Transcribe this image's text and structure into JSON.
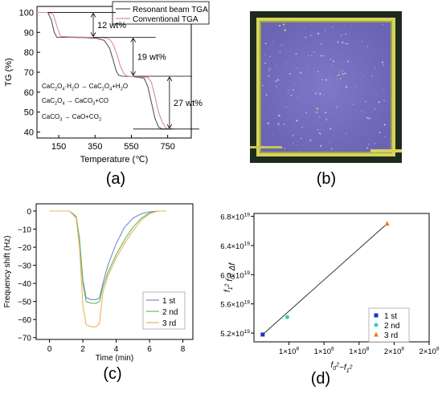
{
  "panel_labels": {
    "a": "(a)",
    "b": "(b)",
    "c": "(c)",
    "d": "(d)"
  },
  "chart_data": [
    {
      "id": "a",
      "type": "line",
      "xlabel": "Temperature (℃)",
      "ylabel": "TG (%)",
      "xticks": [
        150,
        350,
        550,
        750
      ],
      "yticks": [
        40,
        50,
        60,
        70,
        80,
        90,
        100
      ],
      "xlim": [
        30,
        880
      ],
      "ylim": [
        37,
        103
      ],
      "legend": "top-right",
      "series": [
        {
          "name": "Resonant beam TGA",
          "color": "#555555",
          "x": [
            30,
            90,
            110,
            125,
            140,
            200,
            300,
            360,
            400,
            430,
            450,
            465,
            480,
            500,
            560,
            620,
            640,
            660,
            680,
            700,
            720,
            740,
            780
          ],
          "y": [
            100,
            100,
            96,
            90,
            87.5,
            87.5,
            87.3,
            87,
            86,
            82,
            76,
            71,
            68.5,
            68,
            67.8,
            67,
            63,
            55,
            47,
            42.5,
            41.5,
            41.5,
            41.5
          ]
        },
        {
          "name": "Conventional TGA",
          "color": "#e08a96",
          "x": [
            30,
            90,
            120,
            140,
            160,
            200,
            300,
            400,
            430,
            450,
            470,
            490,
            510,
            530,
            560,
            640,
            660,
            680,
            700,
            720,
            740,
            760,
            780
          ],
          "y": [
            100,
            100,
            99,
            93,
            88,
            87.8,
            87.6,
            87.3,
            86.5,
            84,
            79,
            73,
            69,
            68,
            67.8,
            67.5,
            65,
            58,
            50,
            45,
            42,
            41.5,
            41.5
          ]
        }
      ],
      "step_annotations": [
        "12 wt%",
        "19 wt%",
        "27 wt%"
      ],
      "step_levels": [
        [
          100,
          87.5
        ],
        [
          87.5,
          68
        ],
        [
          68,
          41.5
        ]
      ],
      "equations": [
        [
          "CaC",
          "2",
          "O",
          "4",
          "·H",
          "2",
          "O → CaC",
          "2",
          "O",
          "4",
          "+H",
          "2",
          "O"
        ],
        [
          "CaC",
          "2",
          "O",
          "4",
          " → CaCO",
          "3",
          "+CO"
        ],
        [
          "CaCO",
          "3",
          " → CaO+CO",
          "2",
          ""
        ]
      ]
    },
    {
      "id": "c",
      "type": "line",
      "xlabel": "Time (min)",
      "ylabel": "Frequency shift (Hz)",
      "xticks": [
        0,
        2,
        4,
        6,
        8
      ],
      "yticks": [
        0,
        -10,
        -20,
        -30,
        -40,
        -50,
        -60,
        -70
      ],
      "xlim": [
        -0.8,
        8.6
      ],
      "ylim": [
        -71,
        4
      ],
      "legend": "bottom-right",
      "series": [
        {
          "name": "1 st",
          "color": "#7b86d6",
          "x": [
            0,
            1.2,
            1.6,
            1.8,
            2.0,
            2.2,
            2.5,
            2.8,
            3.0,
            3.2,
            3.5,
            4.0,
            4.5,
            5.0,
            5.5,
            6.0,
            6.5,
            7.0
          ],
          "y": [
            0,
            0,
            -3,
            -15,
            -38,
            -48,
            -49,
            -49,
            -48,
            -40,
            -30,
            -18,
            -9,
            -4,
            -1.5,
            -0.5,
            0,
            0
          ]
        },
        {
          "name": "2 nd",
          "color": "#5cbf5c",
          "x": [
            0,
            1.2,
            1.6,
            1.8,
            2.0,
            2.2,
            2.5,
            2.8,
            3.0,
            3.2,
            3.5,
            4.0,
            4.5,
            5.0,
            5.5,
            6.0,
            6.5,
            7.0
          ],
          "y": [
            0,
            0,
            -3,
            -16,
            -40,
            -50,
            -51,
            -51,
            -50,
            -42,
            -34,
            -24,
            -16,
            -9,
            -4,
            -1,
            0,
            0
          ]
        },
        {
          "name": "3 rd",
          "color": "#f0b060",
          "x": [
            0,
            1.2,
            1.6,
            1.8,
            2.0,
            2.2,
            2.5,
            2.8,
            3.0,
            3.2,
            3.5,
            4.0,
            4.5,
            5.0,
            5.5,
            6.0,
            6.5,
            7.0
          ],
          "y": [
            0,
            0,
            -4,
            -20,
            -52,
            -63,
            -64,
            -64,
            -62,
            -45,
            -36,
            -26,
            -18,
            -11,
            -5,
            -1.5,
            0,
            0
          ]
        }
      ]
    },
    {
      "id": "d",
      "type": "scatter",
      "xlabel_parts": [
        "f",
        "0",
        "2",
        "−f",
        "1",
        "2"
      ],
      "ylabel_parts": [
        "f",
        "1",
        "2",
        " f",
        "0",
        "2",
        " Δf"
      ],
      "yticks": [
        "5.2×10",
        "5.6×10",
        "6.0×10",
        "6.4×10",
        "6.8×10"
      ],
      "ytick_exponent": "19",
      "ytick_values": [
        5.2,
        5.6,
        6.0,
        6.4,
        6.8
      ],
      "xticks": [
        "1×10",
        "1×10",
        "1×10",
        "2×10",
        "2×10"
      ],
      "xtick_exponent": "8",
      "xlim": [
        0,
        5
      ],
      "ylim": [
        5.08,
        6.84
      ],
      "legend": "bottom-right",
      "fit_line": {
        "x": [
          0.25,
          3.8
        ],
        "y": [
          5.18,
          6.7
        ]
      },
      "series": [
        {
          "name": "1 st",
          "color": "#1f2fc4",
          "marker": "square",
          "x": [
            0.25
          ],
          "y": [
            5.18
          ]
        },
        {
          "name": "2 nd",
          "color": "#39d39a",
          "marker": "circle",
          "x": [
            0.95
          ],
          "y": [
            5.42
          ]
        },
        {
          "name": "3 rd",
          "color": "#f07d1a",
          "marker": "triangle",
          "x": [
            3.8
          ],
          "y": [
            6.7
          ]
        }
      ]
    }
  ]
}
